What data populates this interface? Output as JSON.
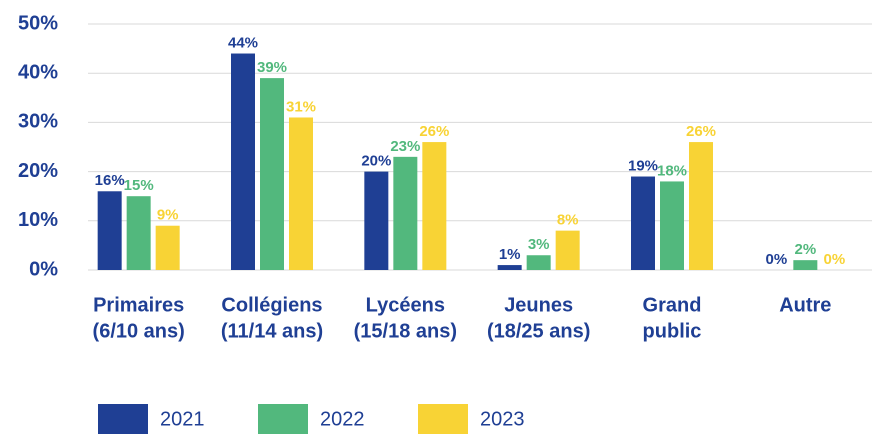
{
  "chart_data": {
    "type": "bar",
    "categories": [
      [
        "Primaires",
        "(6/10 ans)"
      ],
      [
        "Collégiens",
        "(11/14 ans)"
      ],
      [
        "Lycéens",
        "(15/18 ans)"
      ],
      [
        "Jeunes",
        "(18/25 ans)"
      ],
      [
        "Grand",
        "public"
      ],
      [
        "Autre"
      ]
    ],
    "series": [
      {
        "name": "2021",
        "color": "#1f3f94",
        "values": [
          16,
          44,
          20,
          1,
          19,
          0
        ],
        "value_labels": [
          "16%",
          "44%",
          "20%",
          "1%",
          "19%",
          "0%"
        ]
      },
      {
        "name": "2022",
        "color": "#52b87d",
        "values": [
          15,
          39,
          23,
          3,
          18,
          2
        ],
        "value_labels": [
          "15%",
          "39%",
          "23%",
          "3%",
          "18%",
          "2%"
        ]
      },
      {
        "name": "2023",
        "color": "#f8d335",
        "values": [
          9,
          31,
          26,
          8,
          26,
          0
        ],
        "value_labels": [
          "9%",
          "31%",
          "26%",
          "8%",
          "26%",
          "0%"
        ]
      }
    ],
    "ylim": [
      0,
      50
    ],
    "yticks": [
      {
        "value": 0,
        "label": "0%"
      },
      {
        "value": 10,
        "label": "10%"
      },
      {
        "value": 20,
        "label": "20%"
      },
      {
        "value": 30,
        "label": "30%"
      },
      {
        "value": 40,
        "label": "40%"
      },
      {
        "value": 50,
        "label": "50%"
      }
    ],
    "grid": true
  }
}
